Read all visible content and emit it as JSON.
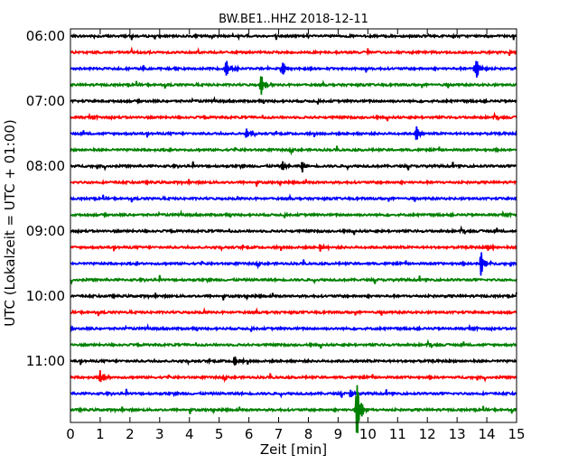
{
  "chart_data": {
    "type": "line",
    "title": "BW.BE1..HHZ 2018-12-11",
    "xlabel": "Zeit  [min]",
    "ylabel": "UTC (Lokalzeit = UTC + 01:00)",
    "xlim": [
      0,
      15
    ],
    "x_ticks": [
      "0",
      "1",
      "2",
      "3",
      "4",
      "5",
      "6",
      "7",
      "8",
      "9",
      "10",
      "11",
      "12",
      "13",
      "14",
      "15"
    ],
    "y_tick_labels": [
      "06:00",
      "07:00",
      "08:00",
      "09:00",
      "10:00",
      "11:00"
    ],
    "trace_start_times": [
      "06:00",
      "06:15",
      "06:30",
      "06:45",
      "07:00",
      "07:15",
      "07:30",
      "07:45",
      "08:00",
      "08:15",
      "08:30",
      "08:45",
      "09:00",
      "09:15",
      "09:30",
      "09:45",
      "10:00",
      "10:15",
      "10:30",
      "10:45",
      "11:00",
      "11:15",
      "11:30",
      "11:45"
    ],
    "trace_colors": [
      "#000000",
      "#ff0000",
      "#0000ff",
      "#008000"
    ],
    "grid": false,
    "events": [
      {
        "trace": 2,
        "minute": 5.2,
        "amplitude": 0.7
      },
      {
        "trace": 2,
        "minute": 7.1,
        "amplitude": 0.55
      },
      {
        "trace": 2,
        "minute": 13.6,
        "amplitude": 0.9
      },
      {
        "trace": 3,
        "minute": 6.4,
        "amplitude": 0.65
      },
      {
        "trace": 6,
        "minute": 5.9,
        "amplitude": 0.35
      },
      {
        "trace": 6,
        "minute": 11.6,
        "amplitude": 0.6
      },
      {
        "trace": 8,
        "minute": 7.1,
        "amplitude": 0.35
      },
      {
        "trace": 8,
        "minute": 7.8,
        "amplitude": 0.35
      },
      {
        "trace": 13,
        "minute": 8.4,
        "amplitude": 0.3
      },
      {
        "trace": 13,
        "minute": 14.0,
        "amplitude": 0.3
      },
      {
        "trace": 14,
        "minute": 13.8,
        "amplitude": 0.8
      },
      {
        "trace": 20,
        "minute": 5.5,
        "amplitude": 0.35
      },
      {
        "trace": 21,
        "minute": 1.0,
        "amplitude": 0.45
      },
      {
        "trace": 22,
        "minute": 9.4,
        "amplitude": 0.3
      },
      {
        "trace": 23,
        "minute": 9.6,
        "amplitude": 2.3
      }
    ]
  }
}
